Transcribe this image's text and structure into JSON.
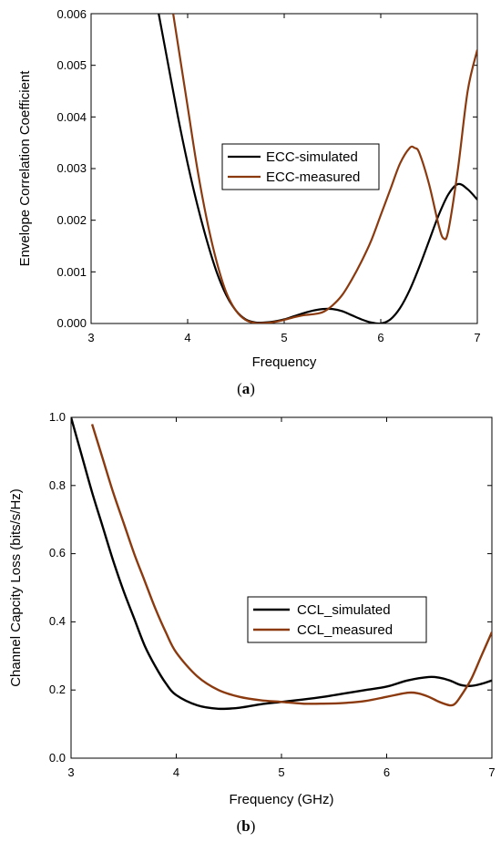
{
  "chart_data": [
    {
      "type": "line",
      "caption": "(a)",
      "xlabel": "Frequency",
      "ylabel": "Envelope Correlation Coefficient",
      "xlim": [
        3,
        7
      ],
      "ylim": [
        0,
        0.006
      ],
      "xticks": [
        "3",
        "4",
        "5",
        "6",
        "7"
      ],
      "yticks": [
        "0.000",
        "0.001",
        "0.002",
        "0.003",
        "0.004",
        "0.005",
        "0.006"
      ],
      "grid": false,
      "legend_position": "center-right",
      "series": [
        {
          "name": "ECC-simulated",
          "color": "#000000",
          "x": [
            3.7,
            3.8,
            3.9,
            4.0,
            4.1,
            4.2,
            4.3,
            4.4,
            4.5,
            4.6,
            4.7,
            4.8,
            4.9,
            5.0,
            5.1,
            5.2,
            5.3,
            5.4,
            5.5,
            5.6,
            5.7,
            5.8,
            5.9,
            6.0,
            6.1,
            6.2,
            6.3,
            6.4,
            6.5,
            6.6,
            6.7,
            6.8,
            6.9,
            7.0
          ],
          "y": [
            0.006,
            0.005,
            0.004,
            0.0031,
            0.0023,
            0.0016,
            0.001,
            0.00055,
            0.00025,
            8e-05,
            2e-05,
            2e-05,
            4e-05,
            8e-05,
            0.00014,
            0.0002,
            0.00025,
            0.00028,
            0.00028,
            0.00024,
            0.00016,
            8e-05,
            2e-05,
            0.0,
            8e-05,
            0.0003,
            0.00065,
            0.0011,
            0.0016,
            0.0021,
            0.0025,
            0.0027,
            0.0026,
            0.0024
          ]
        },
        {
          "name": "ECC-measured",
          "color": "#8B3A0F",
          "x": [
            3.85,
            3.9,
            4.0,
            4.1,
            4.2,
            4.3,
            4.4,
            4.5,
            4.6,
            4.7,
            4.8,
            4.9,
            5.0,
            5.1,
            5.2,
            5.3,
            5.4,
            5.5,
            5.6,
            5.7,
            5.8,
            5.9,
            6.0,
            6.1,
            6.2,
            6.3,
            6.35,
            6.4,
            6.5,
            6.6,
            6.65,
            6.7,
            6.8,
            6.9,
            7.0
          ],
          "y": [
            0.006,
            0.0054,
            0.0042,
            0.003,
            0.002,
            0.0012,
            0.0006,
            0.00025,
            7e-05,
            1e-05,
            1e-05,
            3e-05,
            7e-05,
            0.00012,
            0.00016,
            0.00018,
            0.00022,
            0.00035,
            0.00055,
            0.00085,
            0.0012,
            0.0016,
            0.0021,
            0.0026,
            0.0031,
            0.0034,
            0.0034,
            0.0033,
            0.0027,
            0.0019,
            0.00165,
            0.0018,
            0.003,
            0.0045,
            0.0053
          ]
        }
      ]
    },
    {
      "type": "line",
      "caption": "(b)",
      "xlabel": "Frequency (GHz)",
      "ylabel": "Channel Capcity Loss (bits/s/Hz)",
      "xlim": [
        3,
        7
      ],
      "ylim": [
        0,
        1.0
      ],
      "xticks": [
        "3",
        "4",
        "5",
        "6",
        "7"
      ],
      "yticks": [
        "0.0",
        "0.2",
        "0.4",
        "0.6",
        "0.8",
        "1.0"
      ],
      "grid": false,
      "legend_position": "center-right",
      "series": [
        {
          "name": "CCL_simulated",
          "color": "#000000",
          "x": [
            3.0,
            3.1,
            3.2,
            3.3,
            3.4,
            3.5,
            3.6,
            3.7,
            3.8,
            3.9,
            4.0,
            4.2,
            4.4,
            4.6,
            4.8,
            5.0,
            5.2,
            5.4,
            5.6,
            5.8,
            6.0,
            6.2,
            6.4,
            6.5,
            6.6,
            6.7,
            6.8,
            6.9,
            7.0
          ],
          "y": [
            1.0,
            0.89,
            0.78,
            0.68,
            0.58,
            0.49,
            0.41,
            0.33,
            0.27,
            0.22,
            0.185,
            0.155,
            0.145,
            0.148,
            0.158,
            0.165,
            0.172,
            0.18,
            0.19,
            0.2,
            0.21,
            0.228,
            0.238,
            0.236,
            0.228,
            0.215,
            0.212,
            0.218,
            0.228
          ]
        },
        {
          "name": "CCL_measured",
          "color": "#8B3A0F",
          "x": [
            3.2,
            3.3,
            3.4,
            3.5,
            3.6,
            3.7,
            3.8,
            3.9,
            4.0,
            4.2,
            4.4,
            4.6,
            4.8,
            5.0,
            5.2,
            5.4,
            5.6,
            5.8,
            6.0,
            6.2,
            6.3,
            6.4,
            6.5,
            6.6,
            6.65,
            6.7,
            6.8,
            6.9,
            7.0
          ],
          "y": [
            0.98,
            0.88,
            0.78,
            0.69,
            0.6,
            0.52,
            0.44,
            0.37,
            0.31,
            0.24,
            0.2,
            0.18,
            0.17,
            0.165,
            0.16,
            0.16,
            0.162,
            0.168,
            0.18,
            0.192,
            0.19,
            0.18,
            0.165,
            0.155,
            0.16,
            0.18,
            0.23,
            0.3,
            0.37
          ]
        }
      ]
    }
  ]
}
